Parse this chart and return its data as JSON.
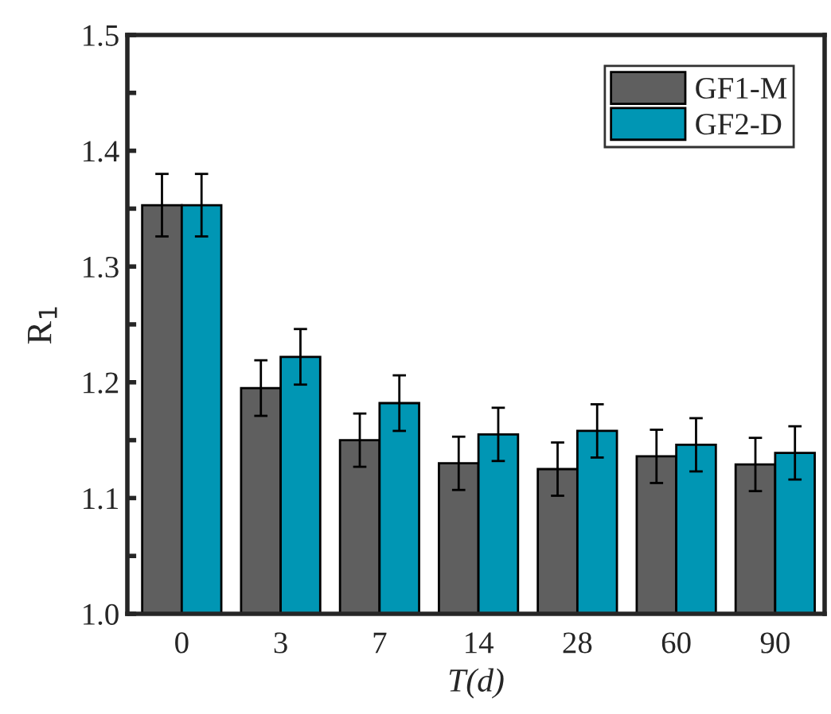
{
  "chart_data": {
    "type": "bar",
    "xlabel": "T(d)",
    "ylabel": "R$_{1}$",
    "categories": [
      "0",
      "3",
      "7",
      "14",
      "28",
      "60",
      "90"
    ],
    "series": [
      {
        "name": "GF1-M",
        "color": "#5f5f5f",
        "values": [
          1.353,
          1.195,
          1.15,
          1.13,
          1.125,
          1.136,
          1.129
        ],
        "errors": [
          0.027,
          0.024,
          0.023,
          0.023,
          0.023,
          0.023,
          0.023
        ]
      },
      {
        "name": "GF2-D",
        "color": "#0096b4",
        "values": [
          1.353,
          1.222,
          1.182,
          1.155,
          1.158,
          1.146,
          1.139
        ],
        "errors": [
          0.027,
          0.024,
          0.024,
          0.023,
          0.023,
          0.023,
          0.023
        ]
      }
    ],
    "ylim": [
      1.0,
      1.5
    ],
    "yticks": [
      {
        "value": 1.0,
        "label": "1.0"
      },
      {
        "value": 1.05,
        "label": null
      },
      1.1,
      {
        "value": 1.15,
        "label": null
      },
      1.2,
      {
        "value": 1.25,
        "label": null
      },
      1.3,
      {
        "value": 1.35,
        "label": null
      },
      1.4,
      {
        "value": 1.45,
        "label": null
      },
      1.5
    ],
    "legend": "top right",
    "grid": false
  }
}
